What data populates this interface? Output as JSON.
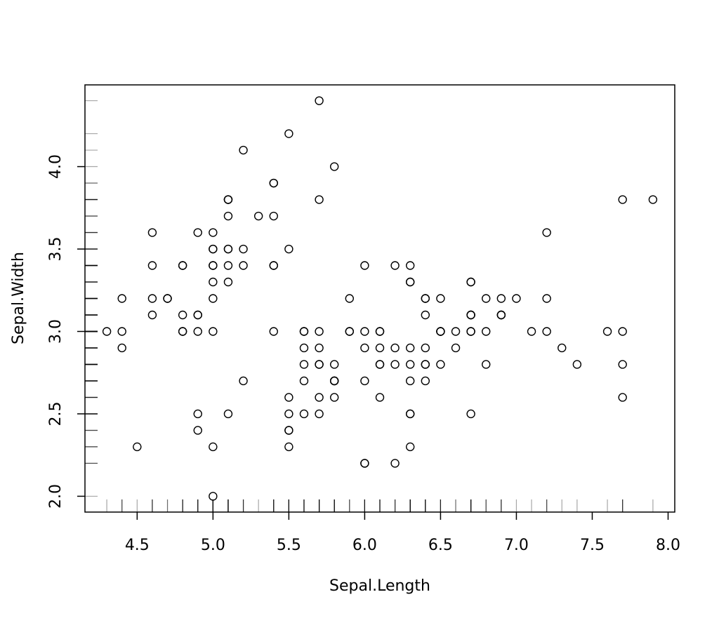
{
  "chart_data": {
    "type": "scatter",
    "title": "",
    "xlabel": "Sepal.Length",
    "ylabel": "Sepal.Width",
    "xlim": [
      4.3,
      7.9
    ],
    "ylim": [
      2.0,
      4.4
    ],
    "x_ticks": [
      "4.5",
      "5.0",
      "5.5",
      "6.0",
      "6.5",
      "7.0",
      "7.5",
      "8.0"
    ],
    "y_ticks": [
      "2.0",
      "2.5",
      "3.0",
      "3.5",
      "4.0"
    ],
    "grid": false,
    "legend": "none",
    "rug": true,
    "marker": "open-circle",
    "color": "#000000",
    "points": [
      [
        5.1,
        3.5
      ],
      [
        4.9,
        3.0
      ],
      [
        4.7,
        3.2
      ],
      [
        4.6,
        3.1
      ],
      [
        5.0,
        3.6
      ],
      [
        5.4,
        3.9
      ],
      [
        4.6,
        3.4
      ],
      [
        5.0,
        3.4
      ],
      [
        4.4,
        2.9
      ],
      [
        4.9,
        3.1
      ],
      [
        5.4,
        3.7
      ],
      [
        4.8,
        3.4
      ],
      [
        4.8,
        3.0
      ],
      [
        4.3,
        3.0
      ],
      [
        5.8,
        4.0
      ],
      [
        5.7,
        4.4
      ],
      [
        5.4,
        3.9
      ],
      [
        5.1,
        3.5
      ],
      [
        5.7,
        3.8
      ],
      [
        5.1,
        3.8
      ],
      [
        5.4,
        3.4
      ],
      [
        5.1,
        3.7
      ],
      [
        4.6,
        3.6
      ],
      [
        5.1,
        3.3
      ],
      [
        4.8,
        3.4
      ],
      [
        5.0,
        3.0
      ],
      [
        5.0,
        3.4
      ],
      [
        5.2,
        3.5
      ],
      [
        5.2,
        3.4
      ],
      [
        4.7,
        3.2
      ],
      [
        4.8,
        3.1
      ],
      [
        5.4,
        3.4
      ],
      [
        5.2,
        4.1
      ],
      [
        5.5,
        4.2
      ],
      [
        4.9,
        3.1
      ],
      [
        5.0,
        3.2
      ],
      [
        5.5,
        3.5
      ],
      [
        4.9,
        3.6
      ],
      [
        4.4,
        3.0
      ],
      [
        5.1,
        3.4
      ],
      [
        5.0,
        3.5
      ],
      [
        4.5,
        2.3
      ],
      [
        4.4,
        3.2
      ],
      [
        5.0,
        3.5
      ],
      [
        5.1,
        3.8
      ],
      [
        4.8,
        3.0
      ],
      [
        5.1,
        3.8
      ],
      [
        4.6,
        3.2
      ],
      [
        5.3,
        3.7
      ],
      [
        5.0,
        3.3
      ],
      [
        7.0,
        3.2
      ],
      [
        6.4,
        3.2
      ],
      [
        6.9,
        3.1
      ],
      [
        5.5,
        2.3
      ],
      [
        6.5,
        2.8
      ],
      [
        5.7,
        2.8
      ],
      [
        6.3,
        3.3
      ],
      [
        4.9,
        2.4
      ],
      [
        6.6,
        2.9
      ],
      [
        5.2,
        2.7
      ],
      [
        5.0,
        2.0
      ],
      [
        5.9,
        3.0
      ],
      [
        6.0,
        2.2
      ],
      [
        6.1,
        2.9
      ],
      [
        5.6,
        2.9
      ],
      [
        6.7,
        3.1
      ],
      [
        5.6,
        3.0
      ],
      [
        5.8,
        2.7
      ],
      [
        6.2,
        2.2
      ],
      [
        5.6,
        2.5
      ],
      [
        5.9,
        3.2
      ],
      [
        6.1,
        2.8
      ],
      [
        6.3,
        2.5
      ],
      [
        6.1,
        2.8
      ],
      [
        6.4,
        2.9
      ],
      [
        6.6,
        3.0
      ],
      [
        6.8,
        2.8
      ],
      [
        6.7,
        3.0
      ],
      [
        6.0,
        2.9
      ],
      [
        5.7,
        2.6
      ],
      [
        5.5,
        2.4
      ],
      [
        5.5,
        2.4
      ],
      [
        5.8,
        2.7
      ],
      [
        6.0,
        2.7
      ],
      [
        5.4,
        3.0
      ],
      [
        6.0,
        3.4
      ],
      [
        6.7,
        3.1
      ],
      [
        6.3,
        2.3
      ],
      [
        5.6,
        3.0
      ],
      [
        5.5,
        2.5
      ],
      [
        5.5,
        2.6
      ],
      [
        6.1,
        3.0
      ],
      [
        5.8,
        2.6
      ],
      [
        5.0,
        2.3
      ],
      [
        5.6,
        2.7
      ],
      [
        5.7,
        3.0
      ],
      [
        5.7,
        2.9
      ],
      [
        6.2,
        2.9
      ],
      [
        5.1,
        2.5
      ],
      [
        5.7,
        2.8
      ],
      [
        6.3,
        3.3
      ],
      [
        5.8,
        2.7
      ],
      [
        7.1,
        3.0
      ],
      [
        6.3,
        2.9
      ],
      [
        6.5,
        3.0
      ],
      [
        7.6,
        3.0
      ],
      [
        4.9,
        2.5
      ],
      [
        7.3,
        2.9
      ],
      [
        6.7,
        2.5
      ],
      [
        7.2,
        3.6
      ],
      [
        6.5,
        3.2
      ],
      [
        6.4,
        2.7
      ],
      [
        6.8,
        3.0
      ],
      [
        5.7,
        2.5
      ],
      [
        5.8,
        2.8
      ],
      [
        6.4,
        3.2
      ],
      [
        6.5,
        3.0
      ],
      [
        7.7,
        3.8
      ],
      [
        7.7,
        2.6
      ],
      [
        6.0,
        2.2
      ],
      [
        6.9,
        3.2
      ],
      [
        5.6,
        2.8
      ],
      [
        7.7,
        2.8
      ],
      [
        6.3,
        2.7
      ],
      [
        6.7,
        3.3
      ],
      [
        7.2,
        3.2
      ],
      [
        6.2,
        2.8
      ],
      [
        6.1,
        3.0
      ],
      [
        6.4,
        2.8
      ],
      [
        7.2,
        3.0
      ],
      [
        7.4,
        2.8
      ],
      [
        7.9,
        3.8
      ],
      [
        6.4,
        2.8
      ],
      [
        6.3,
        2.8
      ],
      [
        6.1,
        2.6
      ],
      [
        7.7,
        3.0
      ],
      [
        6.3,
        3.4
      ],
      [
        6.4,
        3.1
      ],
      [
        6.0,
        3.0
      ],
      [
        6.9,
        3.1
      ],
      [
        6.7,
        3.1
      ],
      [
        6.9,
        3.1
      ],
      [
        5.8,
        2.7
      ],
      [
        6.8,
        3.2
      ],
      [
        6.7,
        3.3
      ],
      [
        6.7,
        3.0
      ],
      [
        6.3,
        2.5
      ],
      [
        6.5,
        3.0
      ],
      [
        6.2,
        3.4
      ],
      [
        5.9,
        3.0
      ]
    ]
  }
}
